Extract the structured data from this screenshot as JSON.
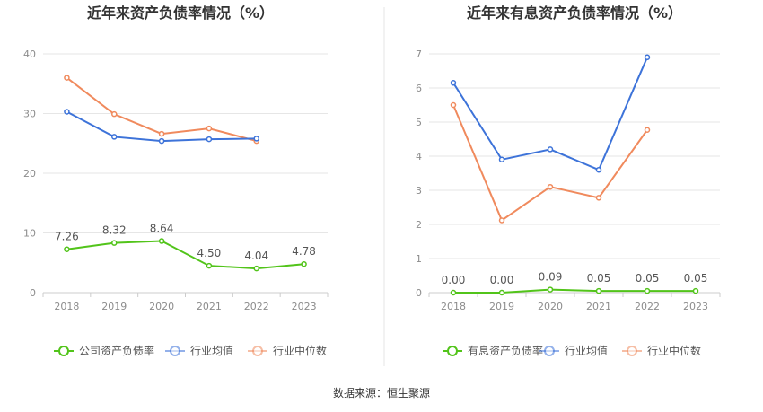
{
  "chart_data": [
    {
      "type": "line",
      "title": "近年来资产负债率情况（%）",
      "categories": [
        "2018",
        "2019",
        "2020",
        "2021",
        "2022",
        "2023"
      ],
      "y_ticks": [
        "0",
        "10",
        "20",
        "30",
        "40"
      ],
      "ylim": [
        0,
        40
      ],
      "grid": true,
      "legend_position": "bottom",
      "series": [
        {
          "name": "公司资产负债率",
          "color": "#52c41a",
          "values": [
            7.26,
            8.32,
            8.64,
            4.5,
            4.04,
            4.78
          ],
          "labels": [
            "7.26",
            "8.32",
            "8.64",
            "4.50",
            "4.04",
            "4.78"
          ]
        },
        {
          "name": "行业均值",
          "color": "#3d73d9",
          "values": [
            30.3,
            26.1,
            25.4,
            25.7,
            25.8,
            null
          ]
        },
        {
          "name": "行业中位数",
          "color": "#f08a5d",
          "values": [
            36.0,
            29.9,
            26.6,
            27.5,
            25.4,
            null
          ]
        }
      ]
    },
    {
      "type": "line",
      "title": "近年来有息资产负债率情况（%）",
      "categories": [
        "2018",
        "2019",
        "2020",
        "2021",
        "2022",
        "2023"
      ],
      "y_ticks": [
        "0",
        "1",
        "2",
        "3",
        "4",
        "5",
        "6",
        "7"
      ],
      "ylim": [
        0,
        7
      ],
      "grid": true,
      "legend_position": "bottom",
      "series": [
        {
          "name": "有息资产负债率",
          "color": "#52c41a",
          "values": [
            0.0,
            0.0,
            0.09,
            0.05,
            0.05,
            0.05
          ],
          "labels": [
            "0.00",
            "0.00",
            "0.09",
            "0.05",
            "0.05",
            "0.05"
          ]
        },
        {
          "name": "行业均值",
          "color": "#3d73d9",
          "values": [
            6.15,
            3.9,
            4.2,
            3.6,
            6.9,
            null
          ]
        },
        {
          "name": "行业中位数",
          "color": "#f08a5d",
          "values": [
            5.5,
            2.12,
            3.1,
            2.78,
            4.77,
            null
          ]
        }
      ]
    }
  ],
  "source": "数据来源：恒生聚源"
}
